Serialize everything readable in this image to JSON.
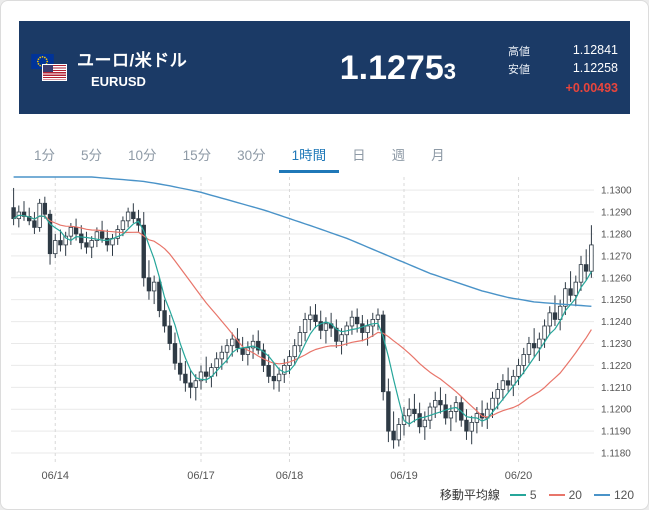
{
  "header": {
    "bg": "#1b3a66",
    "title": "ユーロ/米ドル",
    "symbol": "EURUSD",
    "price": {
      "main": "1.1275",
      "small": "3"
    },
    "high": {
      "label": "高値",
      "value": "1.12841"
    },
    "low": {
      "label": "安値",
      "value": "1.12258"
    },
    "change": {
      "value": "+0.00493",
      "color": "#e8453c"
    }
  },
  "tabs": {
    "items": [
      "1分",
      "5分",
      "10分",
      "15分",
      "30分",
      "1時間",
      "日",
      "週",
      "月"
    ],
    "active_index": 5,
    "active_color": "#1f78b8",
    "inactive_color": "#8e9aa6"
  },
  "legend": {
    "label": "移動平均線",
    "items": [
      {
        "period": "5",
        "color": "#26a69a"
      },
      {
        "period": "20",
        "color": "#e8756a"
      },
      {
        "period": "120",
        "color": "#4a93c8"
      }
    ]
  },
  "chart_data": {
    "type": "candlestick",
    "title": "EURUSD 1時間足",
    "timeframe": "1時間",
    "ylim": [
      1.1175,
      1.1306
    ],
    "grid_color": "#e9e9e9",
    "vgrid_color": "#d9d9d9",
    "candle_color": "#2e3a45",
    "candle_up_fill": "#ffffff",
    "axis_text_color": "#555555",
    "y_ticks": [
      "1.1300",
      "1.1290",
      "1.1280",
      "1.1270",
      "1.1260",
      "1.1250",
      "1.1240",
      "1.1230",
      "1.1220",
      "1.1210",
      "1.1200",
      "1.1190",
      "1.1180"
    ],
    "x_ticks": [
      {
        "label": "06/14",
        "index": 8
      },
      {
        "label": "06/17",
        "index": 36
      },
      {
        "label": "06/18",
        "index": 53
      },
      {
        "label": "06/19",
        "index": 75
      },
      {
        "label": "06/20",
        "index": 97
      }
    ],
    "candles": [
      [
        1.1292,
        1.1301,
        1.1284,
        1.1287
      ],
      [
        1.1287,
        1.1293,
        1.1283,
        1.129
      ],
      [
        1.129,
        1.1295,
        1.1286,
        1.1288
      ],
      [
        1.1288,
        1.1292,
        1.1284,
        1.1286
      ],
      [
        1.1286,
        1.129,
        1.128,
        1.1283
      ],
      [
        1.1283,
        1.1296,
        1.1281,
        1.1294
      ],
      [
        1.1294,
        1.1297,
        1.1287,
        1.1289
      ],
      [
        1.1289,
        1.1291,
        1.1266,
        1.1271
      ],
      [
        1.1271,
        1.128,
        1.1269,
        1.1277
      ],
      [
        1.1277,
        1.1282,
        1.1272,
        1.1275
      ],
      [
        1.1275,
        1.1281,
        1.127,
        1.1279
      ],
      [
        1.1279,
        1.1285,
        1.1275,
        1.1283
      ],
      [
        1.1283,
        1.1287,
        1.1277,
        1.128
      ],
      [
        1.128,
        1.1284,
        1.1273,
        1.1276
      ],
      [
        1.1276,
        1.1281,
        1.1271,
        1.1274
      ],
      [
        1.1274,
        1.1279,
        1.1269,
        1.1277
      ],
      [
        1.1277,
        1.1283,
        1.1274,
        1.1281
      ],
      [
        1.1281,
        1.1286,
        1.1276,
        1.1278
      ],
      [
        1.1278,
        1.1282,
        1.1272,
        1.1275
      ],
      [
        1.1275,
        1.128,
        1.127,
        1.1278
      ],
      [
        1.1278,
        1.1284,
        1.1275,
        1.1282
      ],
      [
        1.1282,
        1.1288,
        1.1279,
        1.1286
      ],
      [
        1.1286,
        1.1292,
        1.1283,
        1.129
      ],
      [
        1.129,
        1.1294,
        1.1285,
        1.1287
      ],
      [
        1.1287,
        1.1291,
        1.1281,
        1.1284
      ],
      [
        1.1284,
        1.129,
        1.1256,
        1.126
      ],
      [
        1.126,
        1.1268,
        1.125,
        1.1254
      ],
      [
        1.1254,
        1.1261,
        1.1248,
        1.1258
      ],
      [
        1.1258,
        1.126,
        1.1242,
        1.1245
      ],
      [
        1.1245,
        1.125,
        1.1235,
        1.1238
      ],
      [
        1.1238,
        1.1243,
        1.1227,
        1.123
      ],
      [
        1.123,
        1.1235,
        1.1218,
        1.1221
      ],
      [
        1.1221,
        1.1228,
        1.1213,
        1.1216
      ],
      [
        1.1216,
        1.1222,
        1.1208,
        1.1212
      ],
      [
        1.1212,
        1.1218,
        1.1205,
        1.121
      ],
      [
        1.121,
        1.1216,
        1.1204,
        1.1213
      ],
      [
        1.1213,
        1.122,
        1.1209,
        1.1217
      ],
      [
        1.1217,
        1.1224,
        1.1212,
        1.1215
      ],
      [
        1.1215,
        1.1221,
        1.121,
        1.1219
      ],
      [
        1.1219,
        1.1226,
        1.1215,
        1.1223
      ],
      [
        1.1223,
        1.1229,
        1.1218,
        1.1226
      ],
      [
        1.1226,
        1.1232,
        1.1221,
        1.1229
      ],
      [
        1.1229,
        1.1235,
        1.1224,
        1.1232
      ],
      [
        1.1232,
        1.1237,
        1.1226,
        1.1228
      ],
      [
        1.1228,
        1.1233,
        1.1222,
        1.1225
      ],
      [
        1.1225,
        1.1231,
        1.122,
        1.1228
      ],
      [
        1.1228,
        1.1234,
        1.1223,
        1.1231
      ],
      [
        1.1231,
        1.1236,
        1.1225,
        1.1227
      ],
      [
        1.1227,
        1.123,
        1.1217,
        1.122
      ],
      [
        1.122,
        1.1225,
        1.1212,
        1.1215
      ],
      [
        1.1215,
        1.1221,
        1.1209,
        1.1213
      ],
      [
        1.1213,
        1.1219,
        1.1208,
        1.1216
      ],
      [
        1.1216,
        1.1223,
        1.1212,
        1.122
      ],
      [
        1.122,
        1.1227,
        1.1216,
        1.1224
      ],
      [
        1.1224,
        1.1232,
        1.122,
        1.1229
      ],
      [
        1.1229,
        1.1238,
        1.1226,
        1.1235
      ],
      [
        1.1235,
        1.1244,
        1.1231,
        1.1241
      ],
      [
        1.1241,
        1.1247,
        1.1236,
        1.1243
      ],
      [
        1.1243,
        1.1248,
        1.1237,
        1.124
      ],
      [
        1.124,
        1.1245,
        1.1232,
        1.1236
      ],
      [
        1.1236,
        1.1242,
        1.123,
        1.1239
      ],
      [
        1.1239,
        1.1244,
        1.1233,
        1.1237
      ],
      [
        1.1237,
        1.1241,
        1.1228,
        1.1231
      ],
      [
        1.1231,
        1.1237,
        1.1225,
        1.1234
      ],
      [
        1.1234,
        1.124,
        1.1229,
        1.1238
      ],
      [
        1.1238,
        1.1245,
        1.1234,
        1.1242
      ],
      [
        1.1242,
        1.1246,
        1.1235,
        1.1239
      ],
      [
        1.1239,
        1.1243,
        1.1231,
        1.1235
      ],
      [
        1.1235,
        1.1241,
        1.1229,
        1.1238
      ],
      [
        1.1238,
        1.1244,
        1.1233,
        1.1241
      ],
      [
        1.1241,
        1.1246,
        1.1236,
        1.1243
      ],
      [
        1.1243,
        1.1245,
        1.1204,
        1.1208
      ],
      [
        1.1208,
        1.1214,
        1.1185,
        1.119
      ],
      [
        1.119,
        1.1199,
        1.1182,
        1.1186
      ],
      [
        1.1186,
        1.1196,
        1.1183,
        1.1193
      ],
      [
        1.1193,
        1.1201,
        1.1188,
        1.1197
      ],
      [
        1.1197,
        1.1205,
        1.1192,
        1.12
      ],
      [
        1.12,
        1.1207,
        1.1194,
        1.1198
      ],
      [
        1.1198,
        1.1203,
        1.1189,
        1.1192
      ],
      [
        1.1192,
        1.1199,
        1.1186,
        1.1195
      ],
      [
        1.1195,
        1.1203,
        1.1191,
        1.1201
      ],
      [
        1.1201,
        1.1208,
        1.1196,
        1.1204
      ],
      [
        1.1204,
        1.121,
        1.1198,
        1.1202
      ],
      [
        1.1202,
        1.1207,
        1.1193,
        1.1196
      ],
      [
        1.1196,
        1.1202,
        1.119,
        1.1199
      ],
      [
        1.1199,
        1.1206,
        1.1194,
        1.1203
      ],
      [
        1.1203,
        1.1206,
        1.1192,
        1.1195
      ],
      [
        1.1195,
        1.12,
        1.1186,
        1.119
      ],
      [
        1.119,
        1.1197,
        1.1184,
        1.1194
      ],
      [
        1.1194,
        1.1201,
        1.1189,
        1.1198
      ],
      [
        1.1198,
        1.1204,
        1.1192,
        1.1196
      ],
      [
        1.1196,
        1.1203,
        1.1191,
        1.12
      ],
      [
        1.12,
        1.1208,
        1.1196,
        1.1205
      ],
      [
        1.1205,
        1.1212,
        1.12,
        1.1209
      ],
      [
        1.1209,
        1.1216,
        1.1204,
        1.1213
      ],
      [
        1.1213,
        1.1219,
        1.1208,
        1.1211
      ],
      [
        1.1211,
        1.1218,
        1.1206,
        1.1215
      ],
      [
        1.1215,
        1.1223,
        1.1211,
        1.122
      ],
      [
        1.122,
        1.1228,
        1.1216,
        1.1225
      ],
      [
        1.1225,
        1.1233,
        1.1221,
        1.123
      ],
      [
        1.123,
        1.1237,
        1.1224,
        1.1228
      ],
      [
        1.1228,
        1.1235,
        1.1222,
        1.1232
      ],
      [
        1.1232,
        1.1241,
        1.1228,
        1.1238
      ],
      [
        1.1238,
        1.1247,
        1.1234,
        1.1244
      ],
      [
        1.1244,
        1.1252,
        1.1238,
        1.1241
      ],
      [
        1.1241,
        1.125,
        1.1236,
        1.1247
      ],
      [
        1.1247,
        1.1258,
        1.1243,
        1.1255
      ],
      [
        1.1255,
        1.1263,
        1.1249,
        1.1252
      ],
      [
        1.1252,
        1.1261,
        1.1247,
        1.1258
      ],
      [
        1.1258,
        1.127,
        1.1254,
        1.1266
      ],
      [
        1.1266,
        1.1273,
        1.1259,
        1.1263
      ],
      [
        1.1263,
        1.1284,
        1.126,
        1.1275
      ]
    ],
    "moving_averages": {
      "ma5": {
        "period": 5,
        "color": "#26a69a",
        "source": "close"
      },
      "ma20": {
        "period": 20,
        "color": "#e8756a",
        "source": "close"
      },
      "ma120": {
        "period": 120,
        "color": "#4a93c8",
        "anchors": [
          [
            0,
            1.1306
          ],
          [
            15,
            1.1306
          ],
          [
            20,
            1.1305
          ],
          [
            25,
            1.1304
          ],
          [
            30,
            1.1302
          ],
          [
            36,
            1.1299
          ],
          [
            42,
            1.1295
          ],
          [
            48,
            1.1291
          ],
          [
            53,
            1.1287
          ],
          [
            58,
            1.1283
          ],
          [
            64,
            1.1278
          ],
          [
            70,
            1.1272
          ],
          [
            75,
            1.1267
          ],
          [
            80,
            1.1262
          ],
          [
            85,
            1.1258
          ],
          [
            90,
            1.1254
          ],
          [
            95,
            1.1251
          ],
          [
            100,
            1.1249
          ],
          [
            105,
            1.1248
          ],
          [
            111,
            1.1247
          ]
        ]
      }
    }
  }
}
